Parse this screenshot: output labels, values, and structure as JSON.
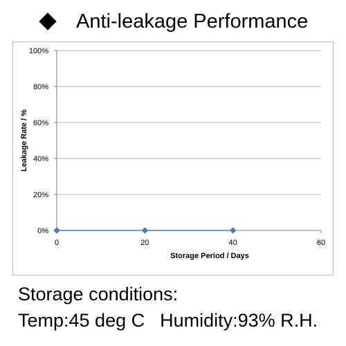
{
  "header": {
    "title": "Anti-leakage Performance"
  },
  "chart_data": {
    "type": "line",
    "title": "",
    "xlabel": "Storage Period / Days",
    "ylabel": "Leakage Rate / %",
    "xlim": [
      0,
      60
    ],
    "ylim": [
      0,
      100
    ],
    "x_ticks": [
      "0",
      "20",
      "40",
      "60"
    ],
    "y_ticks": [
      "0%",
      "20%",
      "40%",
      "60%",
      "80%",
      "100%"
    ],
    "grid": true,
    "series": [
      {
        "x": [
          0,
          20,
          40
        ],
        "values": [
          0,
          0,
          0
        ],
        "color": "#4a7ebb"
      }
    ]
  },
  "footer": {
    "conditions_title": "Storage conditions:",
    "temp": "Temp:45 deg C",
    "humidity": "Humidity:93% R.H."
  }
}
